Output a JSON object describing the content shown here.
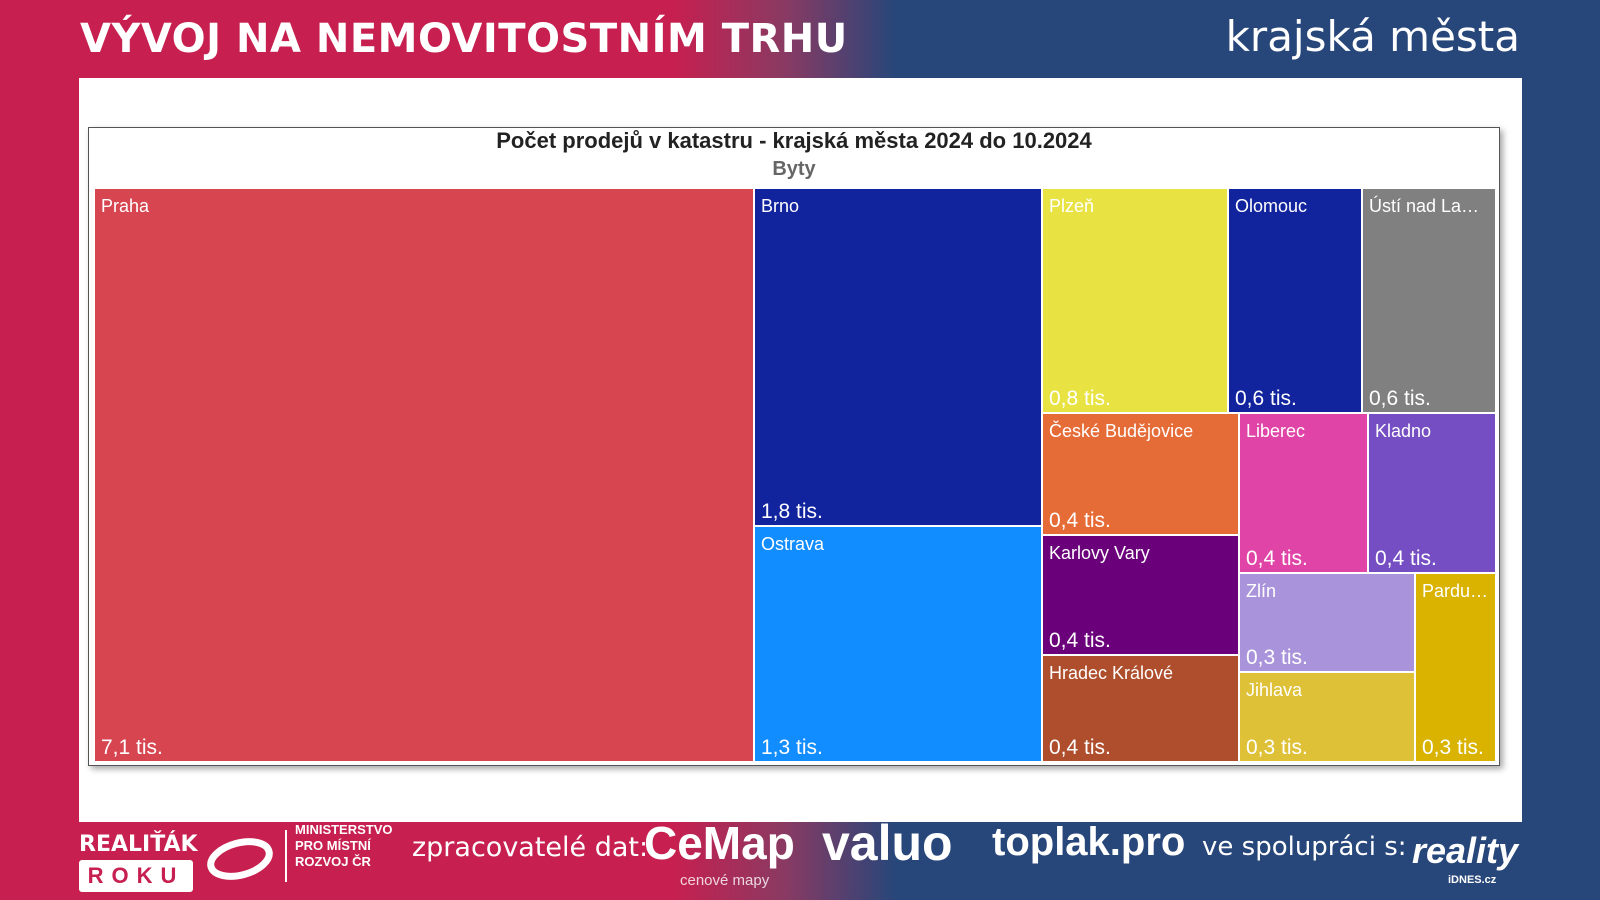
{
  "header": {
    "title": "VÝVOJ NA NEMOVITOSTNÍM TRHU",
    "subtitle": "krajská města"
  },
  "chart_data": {
    "type": "treemap",
    "title": "Počet prodejů v katastru - krajská města 2024 do 10.2024",
    "subtitle": "Byty",
    "unit": "tis.",
    "items": [
      {
        "name": "Praha",
        "label": "7,1 tis.",
        "value": 7.1,
        "color": "#d64550"
      },
      {
        "name": "Brno",
        "label": "1,8 tis.",
        "value": 1.8,
        "color": "#12239e"
      },
      {
        "name": "Ostrava",
        "label": "1,3 tis.",
        "value": 1.3,
        "color": "#118dff"
      },
      {
        "name": "Plzeň",
        "label": "0,8 tis.",
        "value": 0.8,
        "color": "#e8e343"
      },
      {
        "name": "Olomouc",
        "label": "0,6 tis.",
        "value": 0.6,
        "color": "#12239e"
      },
      {
        "name": "Ústí nad La…",
        "label": "0,6 tis.",
        "value": 0.6,
        "color": "#808080"
      },
      {
        "name": "České Budějovice",
        "label": "0,4 tis.",
        "value": 0.4,
        "color": "#e66c37"
      },
      {
        "name": "Karlovy Vary",
        "label": "0,4 tis.",
        "value": 0.4,
        "color": "#6b007b"
      },
      {
        "name": "Hradec Králové",
        "label": "0,4 tis.",
        "value": 0.4,
        "color": "#ae4e2c"
      },
      {
        "name": "Liberec",
        "label": "0,4 tis.",
        "value": 0.4,
        "color": "#e044a7"
      },
      {
        "name": "Kladno",
        "label": "0,4 tis.",
        "value": 0.4,
        "color": "#744ec2"
      },
      {
        "name": "Zlín",
        "label": "0,3 tis.",
        "value": 0.3,
        "color": "#a993db"
      },
      {
        "name": "Jihlava",
        "label": "0,3 tis.",
        "value": 0.3,
        "color": "#dfc137"
      },
      {
        "name": "Pardu…",
        "label": "0,3 tis.",
        "value": 0.3,
        "color": "#d9b300"
      }
    ]
  },
  "footer": {
    "realitak": "REALIŤÁK",
    "roku": "ROKU",
    "ministry": [
      "MINISTERSTVO",
      "PRO MÍSTNÍ",
      "ROZVOJ ČR"
    ],
    "processors": "zpracovatelé dat:",
    "cemap": "CeMap",
    "cemap_sub": "cenové mapy",
    "valuo": "valuo",
    "toplak": "toplak.pro",
    "coop": "ve spolupráci s:",
    "reality": "reality",
    "idnes": "iDNES.cz"
  }
}
